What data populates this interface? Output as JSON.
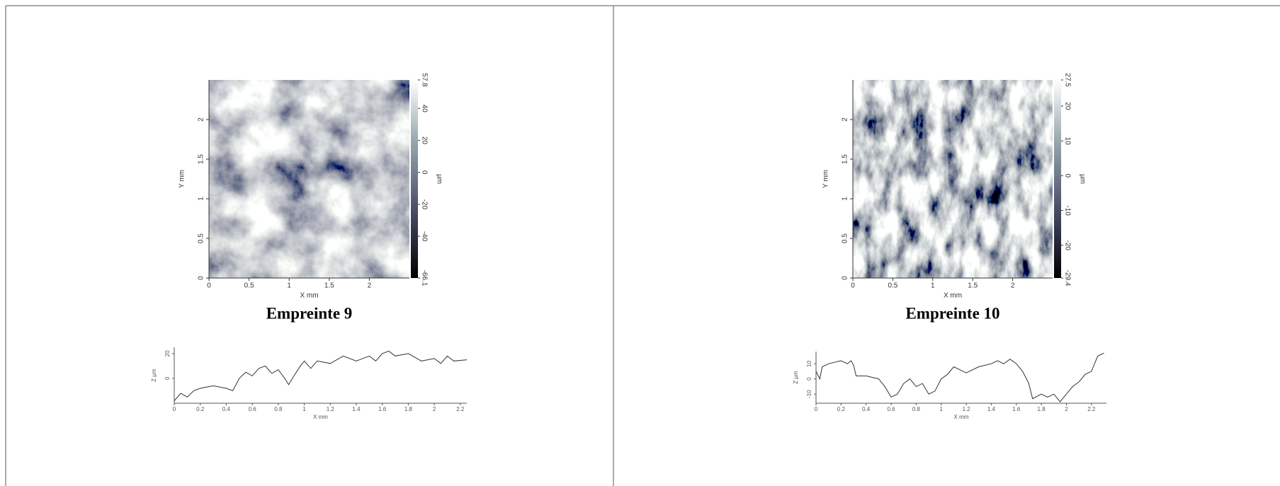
{
  "chart_data": [
    {
      "type": "heatmap",
      "caption": "Empreinte 9",
      "xlabel": "X mm",
      "ylabel": "Y mm",
      "xlim": [
        0,
        2.5
      ],
      "ylim": [
        0,
        2.5
      ],
      "xticks": [
        0,
        0.5,
        1,
        1.5,
        2
      ],
      "yticks": [
        0,
        0.5,
        1,
        1.5,
        2
      ],
      "colorbar": {
        "label": "µm",
        "zlim": [
          -66.1,
          57.8
        ],
        "zticks": [
          -66.1,
          -40,
          -20,
          0,
          20,
          40,
          57.8
        ]
      }
    },
    {
      "type": "line",
      "xlabel": "X mm",
      "ylabel": "Z µm",
      "color": "#333333",
      "xlim": [
        0,
        2.25
      ],
      "ylim": [
        -20,
        25
      ],
      "xticks": [
        0,
        0.2,
        0.4,
        0.6,
        0.8,
        1,
        1.2,
        1.4,
        1.6,
        1.8,
        2,
        2.2
      ],
      "yticks": [
        0,
        20
      ],
      "x": [
        0,
        0.05,
        0.1,
        0.15,
        0.2,
        0.3,
        0.4,
        0.45,
        0.5,
        0.55,
        0.6,
        0.65,
        0.7,
        0.75,
        0.8,
        0.85,
        0.88,
        0.92,
        0.97,
        1.0,
        1.05,
        1.1,
        1.2,
        1.3,
        1.4,
        1.5,
        1.55,
        1.6,
        1.65,
        1.7,
        1.8,
        1.9,
        2.0,
        2.05,
        2.1,
        2.15,
        2.25
      ],
      "values": [
        -18,
        -12,
        -15,
        -10,
        -8,
        -6,
        -8,
        -10,
        0,
        5,
        2,
        8,
        10,
        4,
        7,
        0,
        -5,
        2,
        10,
        14,
        8,
        14,
        12,
        18,
        14,
        18,
        14,
        20,
        22,
        18,
        20,
        14,
        16,
        12,
        18,
        14,
        15
      ]
    },
    {
      "type": "heatmap",
      "caption": "Empreinte 10",
      "xlabel": "X mm",
      "ylabel": "Y mm",
      "xlim": [
        0,
        2.5
      ],
      "ylim": [
        0,
        2.5
      ],
      "xticks": [
        0,
        0.5,
        1,
        1.5,
        2
      ],
      "yticks": [
        0,
        0.5,
        1,
        1.5,
        2
      ],
      "colorbar": {
        "label": "µm",
        "zlim": [
          -29.4,
          27.5
        ],
        "zticks": [
          -29.4,
          -20,
          -10,
          0,
          10,
          20,
          27.5
        ]
      }
    },
    {
      "type": "line",
      "xlabel": "X mm",
      "ylabel": "Z µm",
      "color": "#333333",
      "xlim": [
        0,
        2.32
      ],
      "ylim": [
        -16,
        18
      ],
      "xticks": [
        0,
        0.2,
        0.4,
        0.6,
        0.8,
        1,
        1.2,
        1.4,
        1.6,
        1.8,
        2,
        2.2
      ],
      "yticks": [
        -10,
        0,
        10
      ],
      "x": [
        0,
        0.03,
        0.05,
        0.1,
        0.2,
        0.25,
        0.28,
        0.3,
        0.32,
        0.4,
        0.5,
        0.55,
        0.6,
        0.65,
        0.7,
        0.75,
        0.8,
        0.85,
        0.9,
        0.95,
        1.0,
        1.05,
        1.1,
        1.2,
        1.3,
        1.4,
        1.45,
        1.5,
        1.55,
        1.6,
        1.65,
        1.7,
        1.73,
        1.8,
        1.85,
        1.9,
        1.95,
        2.0,
        2.05,
        2.1,
        2.15,
        2.2,
        2.25,
        2.3
      ],
      "values": [
        5,
        0,
        8,
        10,
        12,
        10,
        12,
        9,
        2,
        2,
        0,
        -5,
        -12,
        -10,
        -3,
        0,
        -5,
        -3,
        -10,
        -8,
        0,
        3,
        8,
        4,
        8,
        10,
        12,
        10,
        13,
        10,
        5,
        -3,
        -13,
        -10,
        -12,
        -10,
        -15,
        -10,
        -5,
        -2,
        3,
        5,
        15,
        17
      ]
    }
  ]
}
